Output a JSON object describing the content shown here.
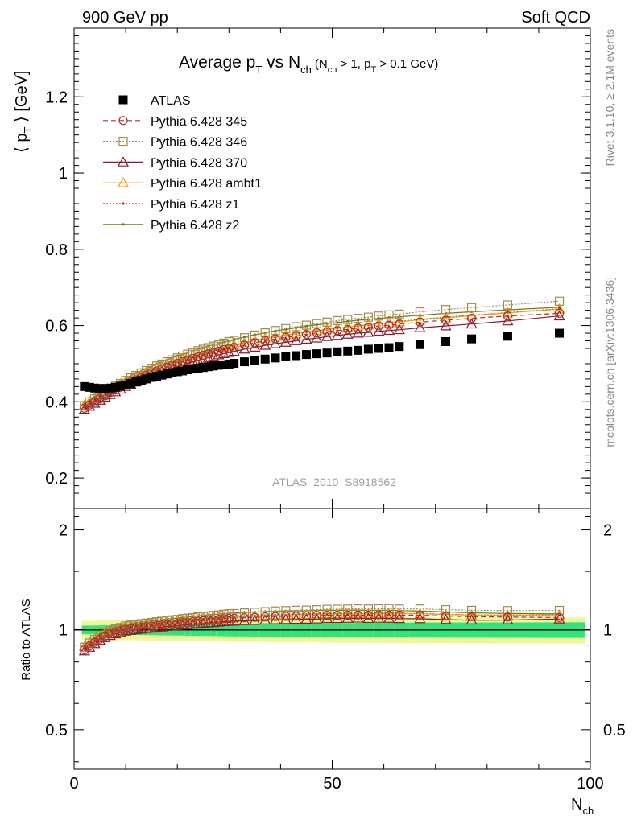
{
  "header": {
    "left": "900 GeV pp",
    "right": "Soft QCD"
  },
  "side_labels": {
    "rivet": "Rivet 3.1.10, ≥ 2.1M events",
    "mcplots": "mcplots.cern.ch [arXiv:1306.3436]"
  },
  "chart_data": [
    {
      "type": "scatter",
      "title_main": "Average p",
      "title_sub_T": "T",
      "title_vs": " vs N",
      "title_sub_ch": "ch",
      "title_cond": "(N",
      "title_cond_ch": "ch",
      "title_cond_2": " > 1, p",
      "title_cond_T": "T",
      "title_cond_3": " > 0.1 GeV)",
      "ylabel_open": "⟨ p",
      "ylabel_sub": "T",
      "ylabel_close": " ⟩  [GeV]",
      "xlabel": "N",
      "xlabel_sub": "ch",
      "watermark": "ATLAS_2010_S8918562",
      "xlim": [
        0,
        100
      ],
      "ylim": [
        0.12,
        1.38
      ],
      "y_ticks": [
        "0.2",
        "0.4",
        "0.6",
        "0.8",
        "1",
        "1.2"
      ],
      "y_tick_values": [
        0.2,
        0.4,
        0.6,
        0.8,
        1.0,
        1.2
      ],
      "legend_position": "top-left",
      "x": [
        2,
        3,
        4,
        5,
        6,
        7,
        8,
        9,
        10,
        11,
        12,
        13,
        14,
        15,
        16,
        17,
        18,
        19,
        20,
        21,
        22,
        23,
        24,
        25,
        26,
        27,
        28,
        29,
        30,
        31,
        33,
        35,
        37,
        39,
        41,
        43,
        45,
        47,
        49,
        51,
        53,
        55,
        57,
        59,
        61,
        63,
        67,
        72,
        77,
        84,
        94
      ],
      "series": [
        {
          "name": "ATLAS",
          "color": "#000000",
          "marker": "square-filled",
          "line": "none",
          "values": [
            0.44,
            0.438,
            0.436,
            0.435,
            0.435,
            0.436,
            0.438,
            0.441,
            0.444,
            0.448,
            0.452,
            0.456,
            0.46,
            0.464,
            0.467,
            0.47,
            0.473,
            0.476,
            0.479,
            0.481,
            0.484,
            0.486,
            0.488,
            0.49,
            0.492,
            0.494,
            0.496,
            0.497,
            0.499,
            0.501,
            0.505,
            0.509,
            0.512,
            0.515,
            0.518,
            0.521,
            0.524,
            0.526,
            0.528,
            0.531,
            0.533,
            0.535,
            0.538,
            0.54,
            0.542,
            0.545,
            0.55,
            0.558,
            0.565,
            0.572,
            0.58
          ]
        },
        {
          "name": "Pythia 6.428 345",
          "color": "#b03030",
          "marker": "circle-open",
          "line": "dashed",
          "values": [
            0.383,
            0.392,
            0.4,
            0.408,
            0.416,
            0.424,
            0.431,
            0.438,
            0.445,
            0.452,
            0.458,
            0.464,
            0.47,
            0.476,
            0.481,
            0.486,
            0.491,
            0.496,
            0.501,
            0.505,
            0.509,
            0.514,
            0.518,
            0.522,
            0.526,
            0.529,
            0.533,
            0.537,
            0.54,
            0.543,
            0.549,
            0.555,
            0.56,
            0.565,
            0.569,
            0.573,
            0.577,
            0.581,
            0.584,
            0.587,
            0.59,
            0.593,
            0.596,
            0.599,
            0.601,
            0.604,
            0.609,
            0.614,
            0.619,
            0.625,
            0.632
          ]
        },
        {
          "name": "Pythia 6.428 346",
          "color": "#a08a50",
          "marker": "square-open",
          "line": "dotted",
          "values": [
            0.39,
            0.4,
            0.408,
            0.417,
            0.425,
            0.433,
            0.441,
            0.448,
            0.456,
            0.463,
            0.469,
            0.476,
            0.482,
            0.488,
            0.494,
            0.499,
            0.505,
            0.51,
            0.515,
            0.52,
            0.525,
            0.529,
            0.534,
            0.538,
            0.542,
            0.546,
            0.55,
            0.554,
            0.558,
            0.561,
            0.568,
            0.575,
            0.581,
            0.587,
            0.592,
            0.597,
            0.601,
            0.605,
            0.609,
            0.613,
            0.616,
            0.619,
            0.622,
            0.625,
            0.628,
            0.63,
            0.636,
            0.642,
            0.647,
            0.654,
            0.664
          ]
        },
        {
          "name": "Pythia 6.428 370",
          "color": "#8b1a2b",
          "marker": "triangle-open",
          "line": "solid",
          "values": [
            0.38,
            0.388,
            0.396,
            0.404,
            0.412,
            0.419,
            0.426,
            0.433,
            0.44,
            0.446,
            0.452,
            0.458,
            0.464,
            0.469,
            0.474,
            0.479,
            0.484,
            0.488,
            0.493,
            0.497,
            0.501,
            0.505,
            0.509,
            0.512,
            0.516,
            0.519,
            0.523,
            0.526,
            0.529,
            0.532,
            0.538,
            0.543,
            0.548,
            0.552,
            0.556,
            0.56,
            0.564,
            0.567,
            0.571,
            0.574,
            0.577,
            0.58,
            0.582,
            0.585,
            0.587,
            0.589,
            0.594,
            0.599,
            0.604,
            0.612,
            0.625
          ]
        },
        {
          "name": "Pythia 6.428 ambt1",
          "color": "#f0a000",
          "marker": "triangle-open",
          "line": "solid",
          "values": [
            0.392,
            0.401,
            0.409,
            0.417,
            0.425,
            0.433,
            0.44,
            0.447,
            0.454,
            0.46,
            0.466,
            0.472,
            0.478,
            0.484,
            0.489,
            0.494,
            0.499,
            0.504,
            0.508,
            0.513,
            0.517,
            0.521,
            0.525,
            0.529,
            0.532,
            0.536,
            0.54,
            0.543,
            0.546,
            0.549,
            0.555,
            0.561,
            0.566,
            0.571,
            0.575,
            0.579,
            0.583,
            0.587,
            0.59,
            0.593,
            0.596,
            0.599,
            0.602,
            0.605,
            0.607,
            0.61,
            0.615,
            0.62,
            0.626,
            0.633,
            0.643
          ]
        },
        {
          "name": "Pythia 6.428 z1",
          "color": "#d02020",
          "marker": "dot",
          "line": "dotted",
          "values": [
            0.386,
            0.395,
            0.404,
            0.412,
            0.42,
            0.428,
            0.436,
            0.443,
            0.45,
            0.457,
            0.463,
            0.469,
            0.475,
            0.481,
            0.486,
            0.491,
            0.496,
            0.501,
            0.506,
            0.51,
            0.515,
            0.519,
            0.523,
            0.527,
            0.531,
            0.534,
            0.538,
            0.541,
            0.545,
            0.548,
            0.554,
            0.56,
            0.565,
            0.57,
            0.574,
            0.579,
            0.583,
            0.586,
            0.59,
            0.593,
            0.596,
            0.599,
            0.602,
            0.605,
            0.608,
            0.611,
            0.616,
            0.622,
            0.627,
            0.634,
            0.644
          ]
        },
        {
          "name": "Pythia 6.428 z2",
          "color": "#6b7a10",
          "marker": "dot",
          "line": "solid",
          "values": [
            0.395,
            0.404,
            0.413,
            0.422,
            0.43,
            0.438,
            0.446,
            0.454,
            0.461,
            0.468,
            0.475,
            0.481,
            0.487,
            0.493,
            0.499,
            0.504,
            0.51,
            0.515,
            0.52,
            0.524,
            0.529,
            0.533,
            0.538,
            0.542,
            0.546,
            0.55,
            0.553,
            0.557,
            0.56,
            0.564,
            0.57,
            0.576,
            0.581,
            0.586,
            0.59,
            0.594,
            0.598,
            0.602,
            0.605,
            0.608,
            0.611,
            0.614,
            0.616,
            0.619,
            0.621,
            0.623,
            0.627,
            0.632,
            0.636,
            0.641,
            0.648
          ]
        }
      ]
    },
    {
      "type": "line",
      "ylabel": "Ratio to ATLAS",
      "xlim": [
        0,
        100
      ],
      "ylim": [
        0.38,
        2.32
      ],
      "y_scale": "log",
      "y_ticks": [
        "0.5",
        "1",
        "2"
      ],
      "y_tick_values": [
        0.5,
        1,
        2
      ],
      "x_ticks": [
        "0",
        "50",
        "100"
      ],
      "x_tick_values": [
        0,
        50,
        100
      ],
      "reference": 1,
      "band_colors": {
        "inner": "#33e37a",
        "outer": "#f0f79a"
      },
      "ratio_series_note": "ratios = model / ATLAS for each series above"
    }
  ]
}
